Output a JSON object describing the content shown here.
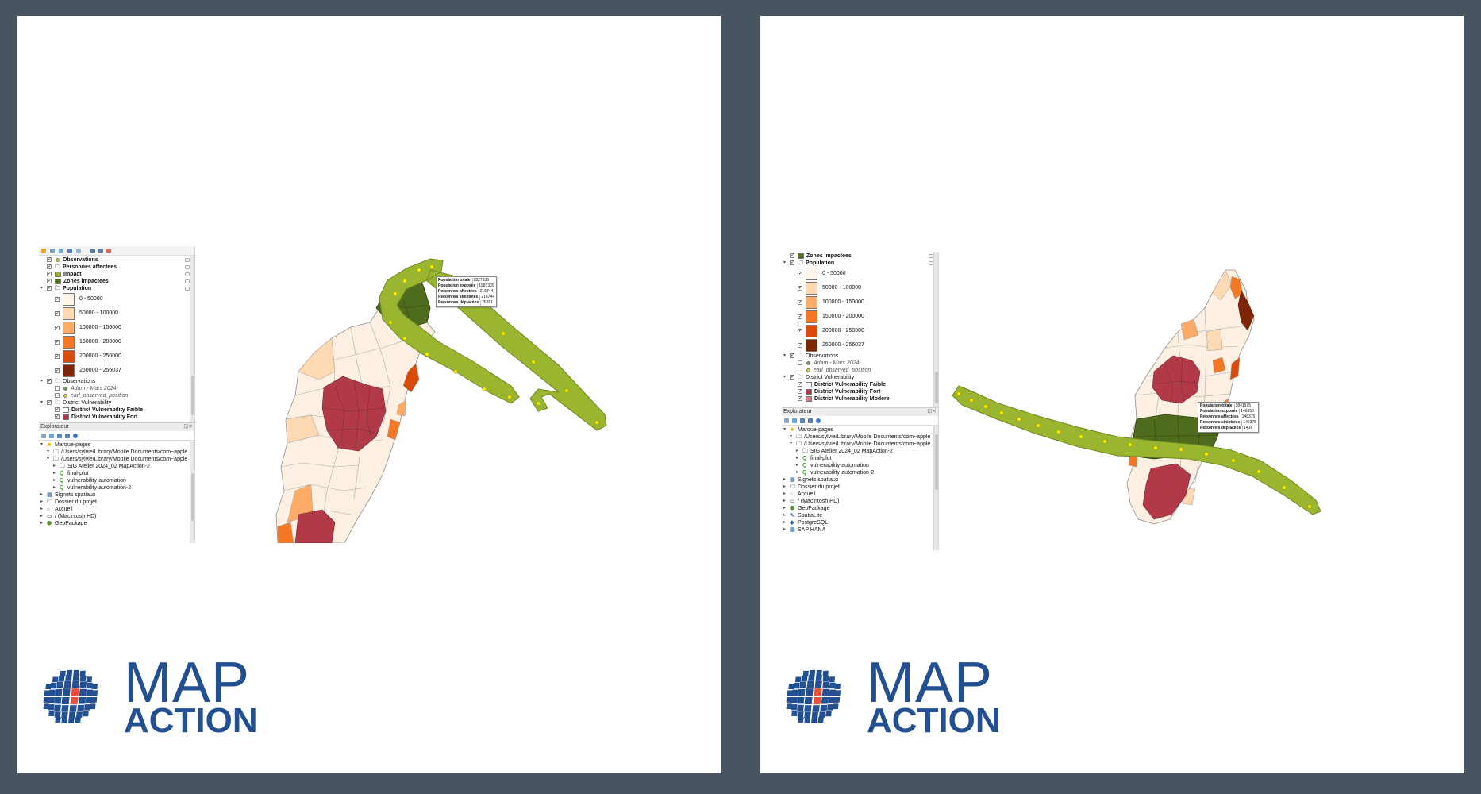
{
  "left_panel": {
    "layers": [
      {
        "label": "Observations",
        "icon": "yellow-dot-icon",
        "color": "#f2d300",
        "bold": true
      },
      {
        "label": "Personnes affectees",
        "icon": "group-layer-icon",
        "bold": true
      },
      {
        "label": "Impact",
        "icon": "impact-swatch-icon",
        "color": "#9ab530",
        "bold": true
      },
      {
        "label": "Zones impactees",
        "icon": "zones-swatch-icon",
        "color": "#4e6b1e",
        "bold": true
      },
      {
        "label": "Population",
        "icon": "group-layer-icon",
        "bold": true
      }
    ],
    "population_classes": [
      {
        "label": "0 - 50000",
        "color": "#fff5eb"
      },
      {
        "label": "50000 - 100000",
        "color": "#fdd9b4"
      },
      {
        "label": "100000 - 150000",
        "color": "#fdab67"
      },
      {
        "label": "150000 - 200000",
        "color": "#f67824"
      },
      {
        "label": "200000 - 250000",
        "color": "#d84b0a"
      },
      {
        "label": "250000 - 256037",
        "color": "#7f2704"
      }
    ],
    "observations_group": "Observations",
    "observation_items": [
      {
        "label": "Adam - Mars 2024",
        "color": "#6aa84f"
      },
      {
        "label": "earl_observed_position",
        "color": "#f2d300"
      }
    ],
    "vulnerability_group": "District Vulnerability",
    "vulnerability_items": [
      {
        "label": "District Vulnerability Faible",
        "color": "#ffffff"
      },
      {
        "label": "District Vulnerability Fort",
        "color": "#b23a48"
      },
      {
        "label": "District Vulnerability Modere",
        "color": "#e07a86"
      }
    ],
    "explorer_title": "Explorateur",
    "explorer_items": [
      {
        "label": "Marque-pages",
        "icon": "star-icon",
        "indent": 0
      },
      {
        "label": "/Users/sylvie/Library/Mobile Documents/com~apple",
        "icon": "folder-icon",
        "indent": 1
      },
      {
        "label": "/Users/sylvie/Library/Mobile Documents/com~apple",
        "icon": "folder-icon",
        "indent": 1
      },
      {
        "label": "SIG Atelier 2024_02 MapAction-2",
        "icon": "folder-icon",
        "indent": 2
      },
      {
        "label": "final-plot",
        "icon": "qgis-project-icon",
        "indent": 2
      },
      {
        "label": "vulnerability-automation",
        "icon": "qgis-project-icon",
        "indent": 2
      },
      {
        "label": "vulnerability-automation-2",
        "icon": "qgis-project-icon",
        "indent": 2
      },
      {
        "label": "Signets spatiaux",
        "icon": "bookmark-icon",
        "indent": 0
      },
      {
        "label": "Dossier du projet",
        "icon": "folder-icon",
        "indent": 0
      },
      {
        "label": "Accueil",
        "icon": "home-icon",
        "indent": 0
      },
      {
        "label": "/ (Macintosh HD)",
        "icon": "drive-icon",
        "indent": 0
      },
      {
        "label": "GeoPackage",
        "icon": "geopackage-icon",
        "indent": 0
      }
    ]
  },
  "right_panel": {
    "layers": [
      {
        "label": "Zones impactees",
        "icon": "zones-swatch-icon",
        "color": "#4e6b1e",
        "bold": true
      },
      {
        "label": "Population",
        "icon": "group-layer-icon",
        "bold": true
      }
    ],
    "population_classes": [
      {
        "label": "0 - 50000",
        "color": "#fff5eb"
      },
      {
        "label": "50000 - 100000",
        "color": "#fdd9b4"
      },
      {
        "label": "100000 - 150000",
        "color": "#fdab67"
      },
      {
        "label": "150000 - 200000",
        "color": "#f67824"
      },
      {
        "label": "200000 - 250000",
        "color": "#d84b0a"
      },
      {
        "label": "250000 - 256037",
        "color": "#7f2704"
      }
    ],
    "observations_group": "Observations",
    "observation_items": [
      {
        "label": "Adam - Mars 2024",
        "color": "#6aa84f"
      },
      {
        "label": "earl_observed_position",
        "color": "#f2d300"
      }
    ],
    "vulnerability_group": "District Vulnerability",
    "vulnerability_items": [
      {
        "label": "District Vulnerability Faible",
        "color": "#ffffff"
      },
      {
        "label": "District Vulnerability Fort",
        "color": "#b23a48"
      },
      {
        "label": "District Vulnerability Modere",
        "color": "#e07a86"
      }
    ],
    "explorer_title": "Explorateur",
    "explorer_items": [
      {
        "label": "Marque-pages",
        "icon": "star-icon",
        "indent": 0
      },
      {
        "label": "/Users/sylvie/Library/Mobile Documents/com~apple",
        "icon": "folder-icon",
        "indent": 1
      },
      {
        "label": "/Users/sylvie/Library/Mobile Documents/com~apple",
        "icon": "folder-icon",
        "indent": 1
      },
      {
        "label": "SIG Atelier 2024_02 MapAction-2",
        "icon": "folder-icon",
        "indent": 2
      },
      {
        "label": "final-plot",
        "icon": "qgis-project-icon",
        "indent": 2
      },
      {
        "label": "vulnerability-automation",
        "icon": "qgis-project-icon",
        "indent": 2
      },
      {
        "label": "vulnerability-automation-2",
        "icon": "qgis-project-icon",
        "indent": 2
      },
      {
        "label": "Signets spatiaux",
        "icon": "bookmark-icon",
        "indent": 0
      },
      {
        "label": "Dossier du projet",
        "icon": "folder-icon",
        "indent": 0
      },
      {
        "label": "Accueil",
        "icon": "home-icon",
        "indent": 0
      },
      {
        "label": "/ (Macintosh HD)",
        "icon": "drive-icon",
        "indent": 0
      },
      {
        "label": "GeoPackage",
        "icon": "geopackage-icon",
        "indent": 0
      },
      {
        "label": "SpatiaLite",
        "icon": "spatialite-icon",
        "indent": 0
      },
      {
        "label": "PostgreSQL",
        "icon": "postgresql-icon",
        "indent": 0
      },
      {
        "label": "SAP HANA",
        "icon": "database-icon",
        "indent": 0
      }
    ]
  },
  "left_tooltip": {
    "rows": [
      {
        "key": "Population totale",
        "value": "2827535"
      },
      {
        "key": "Population exposée",
        "value": "1981309"
      },
      {
        "key": "Personnes affectées",
        "value": "216744"
      },
      {
        "key": "Personnes sinistrées",
        "value": "216744"
      },
      {
        "key": "Personnes déplacées",
        "value": "26851"
      }
    ]
  },
  "right_tooltip": {
    "rows": [
      {
        "key": "Population totale",
        "value": "3841915"
      },
      {
        "key": "Population exposée",
        "value": "146350"
      },
      {
        "key": "Personnes affectées",
        "value": "146375"
      },
      {
        "key": "Personnes sinistrées",
        "value": "146375"
      },
      {
        "key": "Personnes déplacées",
        "value": "1418"
      }
    ]
  },
  "logo": {
    "line1": "MAP",
    "line2": "ACTION",
    "color": "#234f93",
    "accent": "#e8503a"
  },
  "colors": {
    "background": "#48545f",
    "card": "#ffffff",
    "track": "#9ab530",
    "track_outline": "#6e8a22",
    "impact_zone": "#4e6b1e",
    "track_point": "#f2e600"
  }
}
